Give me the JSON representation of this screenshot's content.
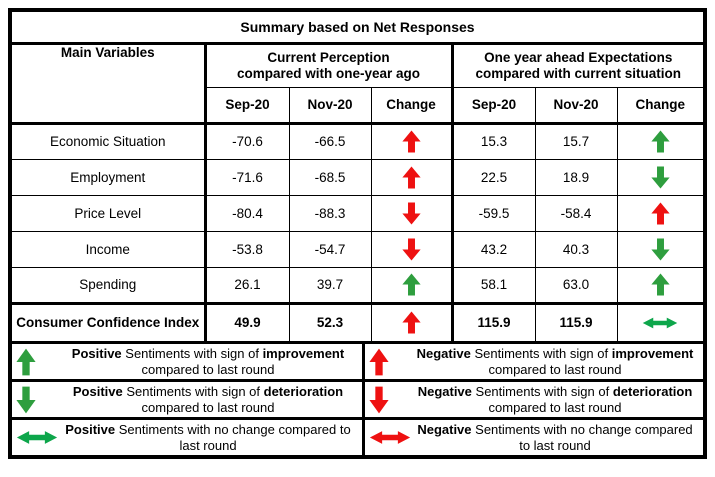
{
  "colors": {
    "red": "#ee1111",
    "green": "#2e9e3e",
    "green_bright": "#0da64b"
  },
  "title": "Summary based on Net Responses",
  "header": {
    "main_col": "Main Variables",
    "groups": [
      {
        "line1": "Current Perception",
        "line2": "compared with one-year ago",
        "cols": [
          "Sep-20",
          "Nov-20",
          "Change"
        ]
      },
      {
        "line1": "One year ahead Expectations",
        "line2": "compared with current situation",
        "cols": [
          "Sep-20",
          "Nov-20",
          "Change"
        ]
      }
    ]
  },
  "rows": [
    {
      "label": "Economic Situation",
      "cp": [
        "-70.6",
        "-66.5"
      ],
      "cp_change": {
        "dir": "up",
        "color": "red"
      },
      "ex": [
        "15.3",
        "15.7"
      ],
      "ex_change": {
        "dir": "up",
        "color": "green"
      }
    },
    {
      "label": "Employment",
      "cp": [
        "-71.6",
        "-68.5"
      ],
      "cp_change": {
        "dir": "up",
        "color": "red"
      },
      "ex": [
        "22.5",
        "18.9"
      ],
      "ex_change": {
        "dir": "down",
        "color": "green"
      }
    },
    {
      "label": "Price Level",
      "cp": [
        "-80.4",
        "-88.3"
      ],
      "cp_change": {
        "dir": "down",
        "color": "red"
      },
      "ex": [
        "-59.5",
        "-58.4"
      ],
      "ex_change": {
        "dir": "up",
        "color": "red"
      }
    },
    {
      "label": "Income",
      "cp": [
        "-53.8",
        "-54.7"
      ],
      "cp_change": {
        "dir": "down",
        "color": "red"
      },
      "ex": [
        "43.2",
        "40.3"
      ],
      "ex_change": {
        "dir": "down",
        "color": "green"
      }
    },
    {
      "label": "Spending",
      "cp": [
        "26.1",
        "39.7"
      ],
      "cp_change": {
        "dir": "up",
        "color": "green"
      },
      "ex": [
        "58.1",
        "63.0"
      ],
      "ex_change": {
        "dir": "up",
        "color": "green"
      }
    },
    {
      "label": "Consumer Confidence Index",
      "cp": [
        "49.9",
        "52.3"
      ],
      "cp_change": {
        "dir": "up",
        "color": "red"
      },
      "ex": [
        "115.9",
        "115.9"
      ],
      "ex_change": {
        "dir": "leftright",
        "color": "green_bright"
      }
    }
  ],
  "legend": [
    {
      "left": {
        "arrow": {
          "dir": "up",
          "color": "green"
        },
        "segments": [
          {
            "t": "Positive",
            "b": true
          },
          {
            "t": " Sentiments with sign of ",
            "b": false
          },
          {
            "t": "improvement",
            "b": true
          },
          {
            "t": " compared to last round",
            "b": false
          }
        ]
      },
      "right": {
        "arrow": {
          "dir": "up",
          "color": "red"
        },
        "segments": [
          {
            "t": "Negative",
            "b": true
          },
          {
            "t": " Sentiments with sign of ",
            "b": false
          },
          {
            "t": "improvement",
            "b": true
          },
          {
            "t": " compared to last round",
            "b": false
          }
        ]
      }
    },
    {
      "left": {
        "arrow": {
          "dir": "down",
          "color": "green"
        },
        "segments": [
          {
            "t": "Positive",
            "b": true
          },
          {
            "t": " Sentiments with sign of ",
            "b": false
          },
          {
            "t": "deterioration",
            "b": true
          },
          {
            "t": " compared to last round",
            "b": false
          }
        ]
      },
      "right": {
        "arrow": {
          "dir": "down",
          "color": "red"
        },
        "segments": [
          {
            "t": "Negative",
            "b": true
          },
          {
            "t": " Sentiments with sign of ",
            "b": false
          },
          {
            "t": "deterioration",
            "b": true
          },
          {
            "t": " compared to last round",
            "b": false
          }
        ]
      }
    },
    {
      "left": {
        "arrow": {
          "dir": "leftright",
          "color": "green_bright"
        },
        "segments": [
          {
            "t": "Positive",
            "b": true
          },
          {
            "t": " Sentiments with no change compared to last round",
            "b": false
          }
        ]
      },
      "right": {
        "arrow": {
          "dir": "leftright",
          "color": "red"
        },
        "segments": [
          {
            "t": "Negative",
            "b": true
          },
          {
            "t": " Sentiments with no change compared to last round",
            "b": false
          }
        ]
      }
    }
  ],
  "chart_data": {
    "type": "table",
    "title": "Summary based on Net Responses",
    "columns": [
      "Main Variables",
      "Current Perception Sep-20",
      "Current Perception Nov-20",
      "Current Perception Change",
      "One year ahead Expectations Sep-20",
      "One year ahead Expectations Nov-20",
      "One year ahead Expectations Change"
    ],
    "rows": [
      [
        "Economic Situation",
        -70.6,
        -66.5,
        "up-red",
        15.3,
        15.7,
        "up-green"
      ],
      [
        "Employment",
        -71.6,
        -68.5,
        "up-red",
        22.5,
        18.9,
        "down-green"
      ],
      [
        "Price Level",
        -80.4,
        -88.3,
        "down-red",
        -59.5,
        -58.4,
        "up-red"
      ],
      [
        "Income",
        -53.8,
        -54.7,
        "down-red",
        43.2,
        40.3,
        "down-green"
      ],
      [
        "Spending",
        26.1,
        39.7,
        "up-green",
        58.1,
        63.0,
        "up-green"
      ],
      [
        "Consumer Confidence Index",
        49.9,
        52.3,
        "up-red",
        115.9,
        115.9,
        "no-change-green"
      ]
    ]
  }
}
